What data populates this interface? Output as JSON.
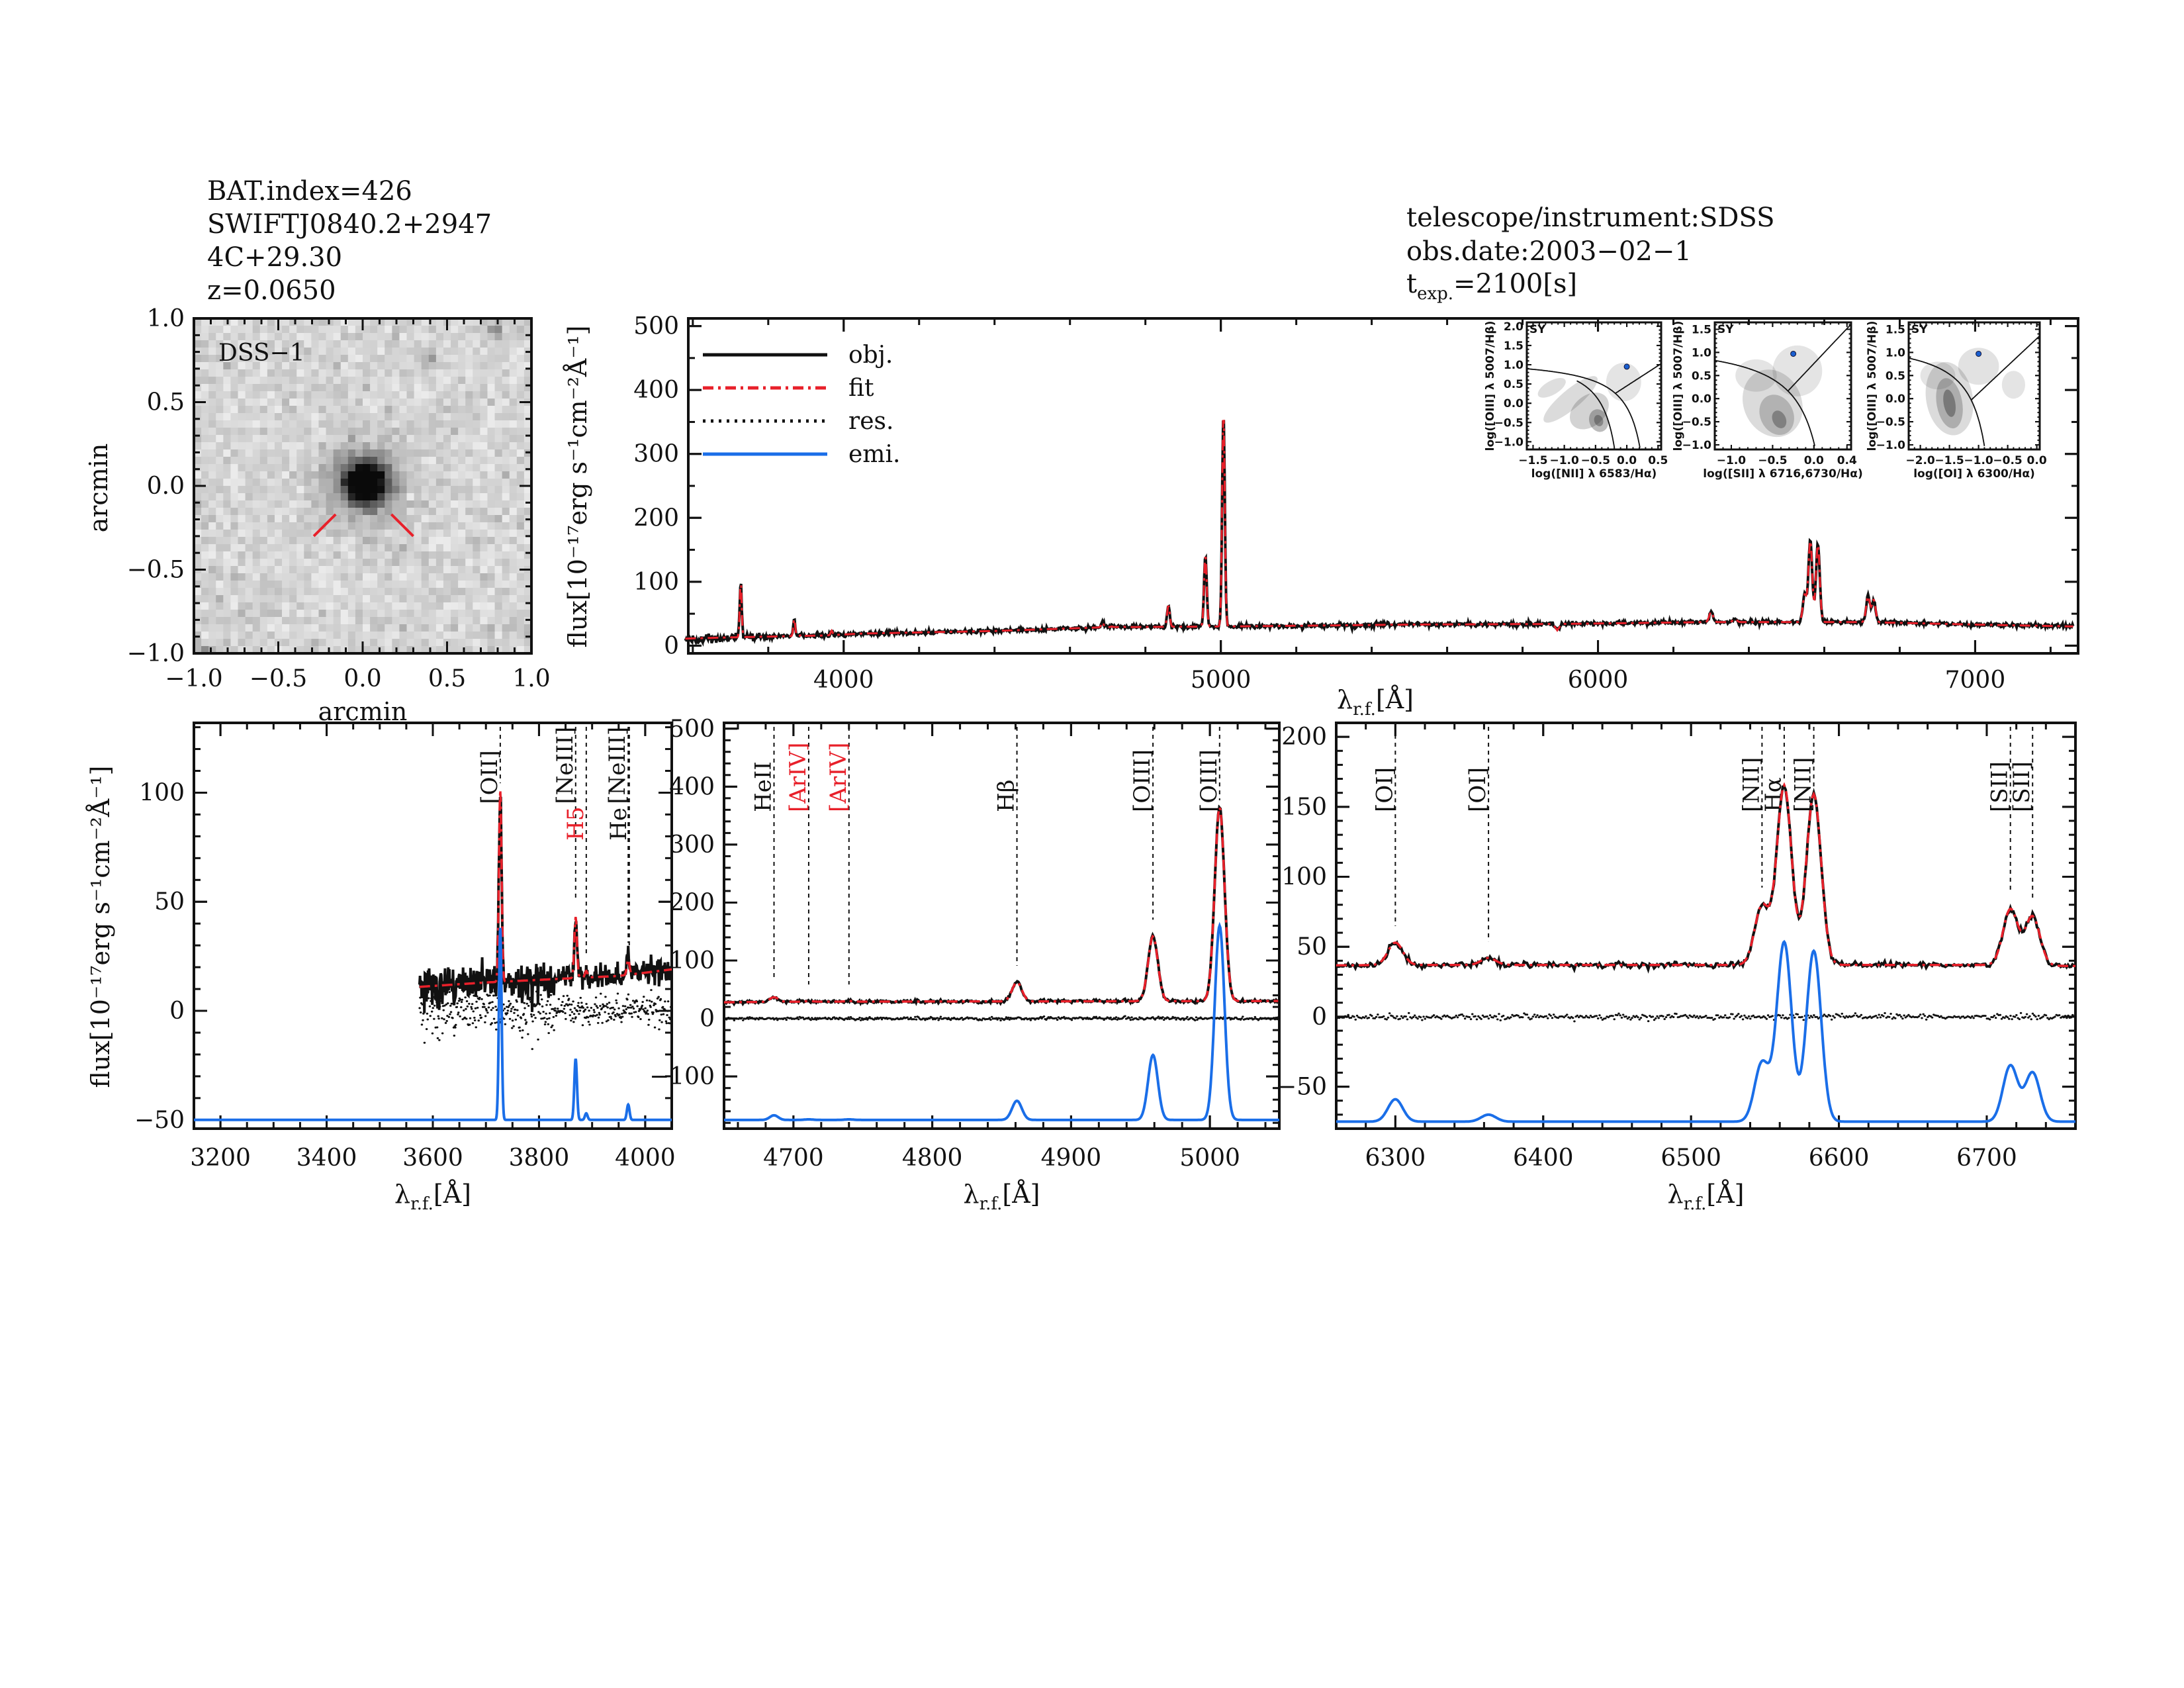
{
  "header_left": {
    "bat_index": "BAT.index=426",
    "swift_name": "SWIFTJ0840.2+2947",
    "counterpart": "4C+29.30",
    "redshift": "z=0.0650"
  },
  "header_right": {
    "instrument": "telescope/instrument:SDSS",
    "obs_date": "obs.date:2003−02−1",
    "texp_t": "t",
    "texp_sub": "exp.",
    "texp_val": "=2100[s]"
  },
  "colors": {
    "obj": "#111111",
    "fit": "#e8202a",
    "res": "#111111",
    "emi": "#1a6ee8",
    "inset_point": "#1a5fd0",
    "sy_label": "#1a6ee8"
  },
  "common": {
    "flux_label": "flux[10⁻¹⁷erg s⁻¹cm⁻²Å⁻¹]",
    "wl_lambda": "λ",
    "wl_sub": "r.f.",
    "wl_unit": "[Å]"
  },
  "legend": [
    {
      "label": "obj.",
      "style": "solid",
      "color": "#111111"
    },
    {
      "label": "fit",
      "style": "dash-dot",
      "color": "#e8202a"
    },
    {
      "label": "res.",
      "style": "dotted",
      "color": "#111111"
    },
    {
      "label": "emi.",
      "style": "solid",
      "color": "#1a6ee8"
    }
  ],
  "chart_data": [
    {
      "id": "image",
      "type": "heatmap",
      "label": "DSS−1",
      "xlabel": "arcmin",
      "ylabel": "arcmin",
      "xlim": [
        -1.0,
        1.0
      ],
      "ylim": [
        -1.0,
        1.0
      ],
      "xticks": [
        "−1.0",
        "−0.5",
        "0.0",
        "0.5",
        "1.0"
      ],
      "yticks": [
        "−1.0",
        "−0.5",
        "0.0",
        "0.5",
        "1.0"
      ],
      "colormap": "inverted grayscale",
      "sources": [
        {
          "x": 0.02,
          "y": 0.02,
          "brightness": 1.0,
          "size": 0.09
        },
        {
          "x": 0.4,
          "y": 0.75,
          "brightness": 0.35,
          "size": 0.03
        },
        {
          "x": 0.8,
          "y": 0.93,
          "brightness": 0.4,
          "size": 0.03
        },
        {
          "x": -0.93,
          "y": -1.0,
          "brightness": 0.35,
          "size": 0.03
        }
      ],
      "marker_color": "#e8202a"
    },
    {
      "id": "full-spectrum",
      "type": "line",
      "xlim": [
        3588,
        7273
      ],
      "ylim": [
        -12,
        512
      ],
      "xticks": [
        "4000",
        "5000",
        "6000",
        "7000"
      ],
      "yticks": [
        "0",
        "100",
        "200",
        "300",
        "400",
        "500"
      ],
      "data_range": [
        3580,
        7260
      ],
      "series": [
        "obj.",
        "fit"
      ]
    },
    {
      "id": "zoom-oii",
      "type": "line",
      "xlim": [
        3150,
        4050
      ],
      "ylim": [
        -54,
        132
      ],
      "xticks": [
        "3200",
        "3400",
        "3600",
        "3800",
        "4000"
      ],
      "yticks": [
        "−50",
        "0",
        "50",
        "100"
      ],
      "data_range": [
        3575,
        4050
      ],
      "emi_baseline": -50,
      "lines": [
        {
          "wl": 3727,
          "text": "[OII]",
          "color": "#111111"
        },
        {
          "wl": 3869,
          "text": "[NeIII]",
          "color": "#111111"
        },
        {
          "wl": 3889,
          "text": "H5",
          "color": "#e8202a"
        },
        {
          "wl": 3968,
          "text": "[NeIII]",
          "color": "#111111"
        },
        {
          "wl": 3970,
          "text": "He",
          "color": "#111111"
        }
      ]
    },
    {
      "id": "zoom-hb-oiii",
      "type": "line",
      "xlim": [
        4650,
        5050
      ],
      "ylim": [
        -190,
        510
      ],
      "xticks": [
        "4700",
        "4800",
        "4900",
        "5000"
      ],
      "yticks": [
        "−100",
        "0",
        "100",
        "200",
        "300",
        "400",
        "500"
      ],
      "data_range": [
        4650,
        5050
      ],
      "emi_baseline": -175,
      "lines": [
        {
          "wl": 4686,
          "text": "HeII",
          "color": "#111111"
        },
        {
          "wl": 4711,
          "text": "[ArIV]",
          "color": "#e8202a"
        },
        {
          "wl": 4740,
          "text": "[ArIV]",
          "color": "#e8202a"
        },
        {
          "wl": 4861,
          "text": "Hβ",
          "color": "#111111"
        },
        {
          "wl": 4959,
          "text": "[OIII]",
          "color": "#111111"
        },
        {
          "wl": 5007,
          "text": "[OIII]",
          "color": "#111111"
        }
      ]
    },
    {
      "id": "zoom-ha-nii",
      "type": "line",
      "xlim": [
        6260,
        6760
      ],
      "ylim": [
        -80,
        210
      ],
      "xticks": [
        "6300",
        "6400",
        "6500",
        "6600",
        "6700"
      ],
      "yticks": [
        "−50",
        "0",
        "50",
        "100",
        "150",
        "200"
      ],
      "data_range": [
        6260,
        6760
      ],
      "emi_baseline": -75,
      "lines": [
        {
          "wl": 6300,
          "text": "[OI]",
          "color": "#111111"
        },
        {
          "wl": 6363,
          "text": "[OI]",
          "color": "#111111"
        },
        {
          "wl": 6548,
          "text": "[NII]",
          "color": "#111111"
        },
        {
          "wl": 6563,
          "text": "Hα",
          "color": "#111111"
        },
        {
          "wl": 6583,
          "text": "[NII]",
          "color": "#111111"
        },
        {
          "wl": 6716,
          "text": "[SII]",
          "color": "#111111"
        },
        {
          "wl": 6731,
          "text": "[SII]",
          "color": "#111111"
        }
      ]
    },
    {
      "id": "bpt-nii",
      "type": "scatter",
      "class_label": "SY",
      "xlabel": "log([NII] λ 6583/Hα)",
      "ylabel": "log([OIII] λ 5007/Hβ)",
      "xlim": [
        -1.6,
        0.55
      ],
      "ylim": [
        -1.2,
        2.1
      ],
      "xticks": [
        "−1.5",
        "−1.0",
        "−0.5",
        "0.0",
        "0.5"
      ],
      "yticks": [
        "−1.0",
        "−0.5",
        "0.0",
        "0.5",
        "1.0",
        "1.5",
        "2.0"
      ],
      "point": {
        "x": 0.0,
        "y": 0.95
      }
    },
    {
      "id": "bpt-sii",
      "type": "scatter",
      "class_label": "SY",
      "xlabel": "log([SII] λ 6716,6730/Hα)",
      "ylabel": "log([OIII] λ 5007/Hβ)",
      "xlim": [
        -1.2,
        0.45
      ],
      "ylim": [
        -1.1,
        1.65
      ],
      "xticks": [
        "−1.0",
        "−0.5",
        "0.0",
        "0.4"
      ],
      "yticks": [
        "−1.0",
        "−0.5",
        "0.0",
        "0.5",
        "1.0",
        "1.5"
      ],
      "point": {
        "x": -0.25,
        "y": 0.97
      }
    },
    {
      "id": "bpt-oi",
      "type": "scatter",
      "class_label": "SY",
      "xlabel": "log([OI] λ 6300/Hα)",
      "ylabel": "log([OIII] λ 5007/Hβ)",
      "xlim": [
        -2.2,
        0.05
      ],
      "ylim": [
        -1.1,
        1.65
      ],
      "xticks": [
        "−2.0",
        "−1.5",
        "−1.0",
        "−0.5",
        "0.0"
      ],
      "yticks": [
        "−1.0",
        "−0.5",
        "0.0",
        "0.5",
        "1.0",
        "1.5"
      ],
      "point": {
        "x": -1.0,
        "y": 0.97
      }
    }
  ],
  "spectrum_model": {
    "continuum": [
      [
        3575,
        11
      ],
      [
        3700,
        13
      ],
      [
        3950,
        16
      ],
      [
        4050,
        19
      ],
      [
        4400,
        23
      ],
      [
        4700,
        29
      ],
      [
        5000,
        30
      ],
      [
        5500,
        33
      ],
      [
        5880,
        34
      ],
      [
        5892,
        24
      ],
      [
        5904,
        34
      ],
      [
        6300,
        37
      ],
      [
        6700,
        37
      ],
      [
        7000,
        33
      ],
      [
        7273,
        30
      ]
    ],
    "emission_lines": [
      {
        "wl": 3727,
        "amp": 88,
        "sigma": 2.5
      },
      {
        "wl": 3869,
        "amp": 28,
        "sigma": 2.5
      },
      {
        "wl": 3889,
        "amp": 3,
        "sigma": 2.5
      },
      {
        "wl": 3968,
        "amp": 7,
        "sigma": 2.5
      },
      {
        "wl": 4686,
        "amp": 8,
        "sigma": 3
      },
      {
        "wl": 4711,
        "amp": 1,
        "sigma": 3
      },
      {
        "wl": 4740,
        "amp": 1,
        "sigma": 3
      },
      {
        "wl": 4861,
        "amp": 33,
        "sigma": 3.5
      },
      {
        "wl": 4959,
        "amp": 112,
        "sigma": 3.5
      },
      {
        "wl": 5007,
        "amp": 335,
        "sigma": 3.5
      },
      {
        "wl": 6300,
        "amp": 16,
        "sigma": 5
      },
      {
        "wl": 6363,
        "amp": 5,
        "sigma": 5
      },
      {
        "wl": 6548,
        "amp": 42,
        "sigma": 5
      },
      {
        "wl": 6563,
        "amp": 128,
        "sigma": 5
      },
      {
        "wl": 6583,
        "amp": 122,
        "sigma": 5
      },
      {
        "wl": 6716,
        "amp": 40,
        "sigma": 5
      },
      {
        "wl": 6731,
        "amp": 35,
        "sigma": 5
      }
    ]
  }
}
